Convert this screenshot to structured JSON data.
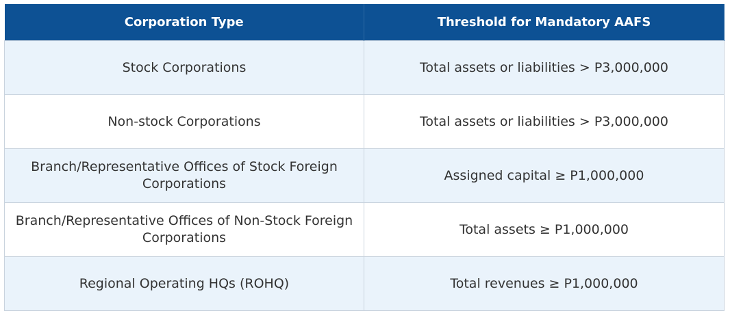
{
  "table": {
    "header": [
      "Corporation Type",
      "Threshold for Mandatory AAFS"
    ],
    "rows": [
      [
        "Stock Corporations",
        "Total assets or liabilities > P3,000,000"
      ],
      [
        "Non-stock Corporations",
        "Total assets or liabilities > P3,000,000"
      ],
      [
        "Branch/Representative Offices of Stock Foreign Corporations",
        "Assigned capital ≥ P1,000,000"
      ],
      [
        "Branch/Representative Offices of Non-Stock Foreign Corporations",
        "Total assets ≥ P1,000,000"
      ],
      [
        "Regional Operating HQs (ROHQ)",
        "Total revenues ≥ P1,000,000"
      ]
    ]
  }
}
